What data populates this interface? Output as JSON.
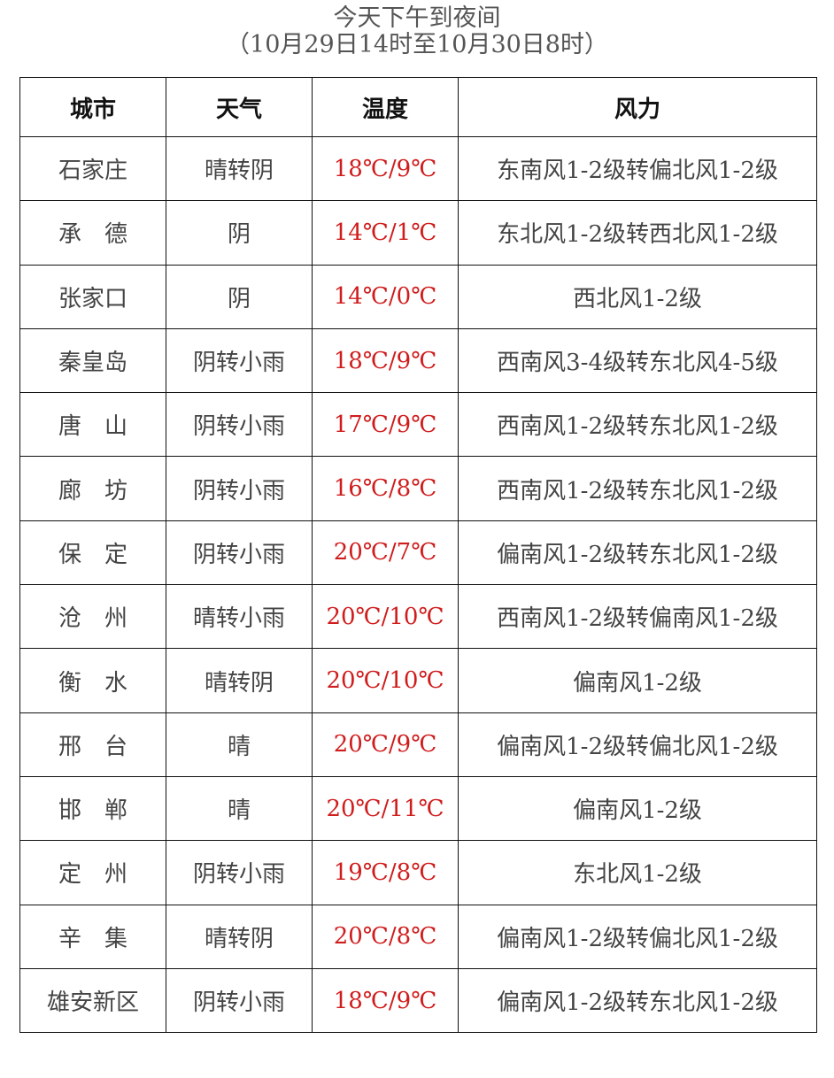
{
  "title": "今天下午到夜间",
  "subtitle": "（10月29日14时至10月30日8时）",
  "colors": {
    "temperature": "#d01c1c",
    "text": "#444444"
  },
  "headers": [
    "城市",
    "天气",
    "温度",
    "风力"
  ],
  "rows": [
    [
      "石家庄",
      "晴转阴",
      "18℃/9℃",
      "东南风1-2级转偏北风1-2级"
    ],
    [
      "承　德",
      "阴",
      "14℃/1℃",
      "东北风1-2级转西北风1-2级"
    ],
    [
      "张家口",
      "阴",
      "14℃/0℃",
      "西北风1-2级"
    ],
    [
      "秦皇岛",
      "阴转小雨",
      "18℃/9℃",
      "西南风3-4级转东北风4-5级"
    ],
    [
      "唐　山",
      "阴转小雨",
      "17℃/9℃",
      "西南风1-2级转东北风1-2级"
    ],
    [
      "廊　坊",
      "阴转小雨",
      "16℃/8℃",
      "西南风1-2级转东北风1-2级"
    ],
    [
      "保　定",
      "阴转小雨",
      "20℃/7℃",
      "偏南风1-2级转东北风1-2级"
    ],
    [
      "沧　州",
      "晴转小雨",
      "20℃/10℃",
      "西南风1-2级转偏南风1-2级"
    ],
    [
      "衡　水",
      "晴转阴",
      "20℃/10℃",
      "偏南风1-2级"
    ],
    [
      "邢　台",
      "晴",
      "20℃/9℃",
      "偏南风1-2级转偏北风1-2级"
    ],
    [
      "邯　郸",
      "晴",
      "20℃/11℃",
      "偏南风1-2级"
    ],
    [
      "定　州",
      "阴转小雨",
      "19℃/8℃",
      "东北风1-2级"
    ],
    [
      "辛　集",
      "晴转阴",
      "20℃/8℃",
      "偏南风1-2级转偏北风1-2级"
    ],
    [
      "雄安新区",
      "阴转小雨",
      "18℃/9℃",
      "偏南风1-2级转东北风1-2级"
    ]
  ]
}
